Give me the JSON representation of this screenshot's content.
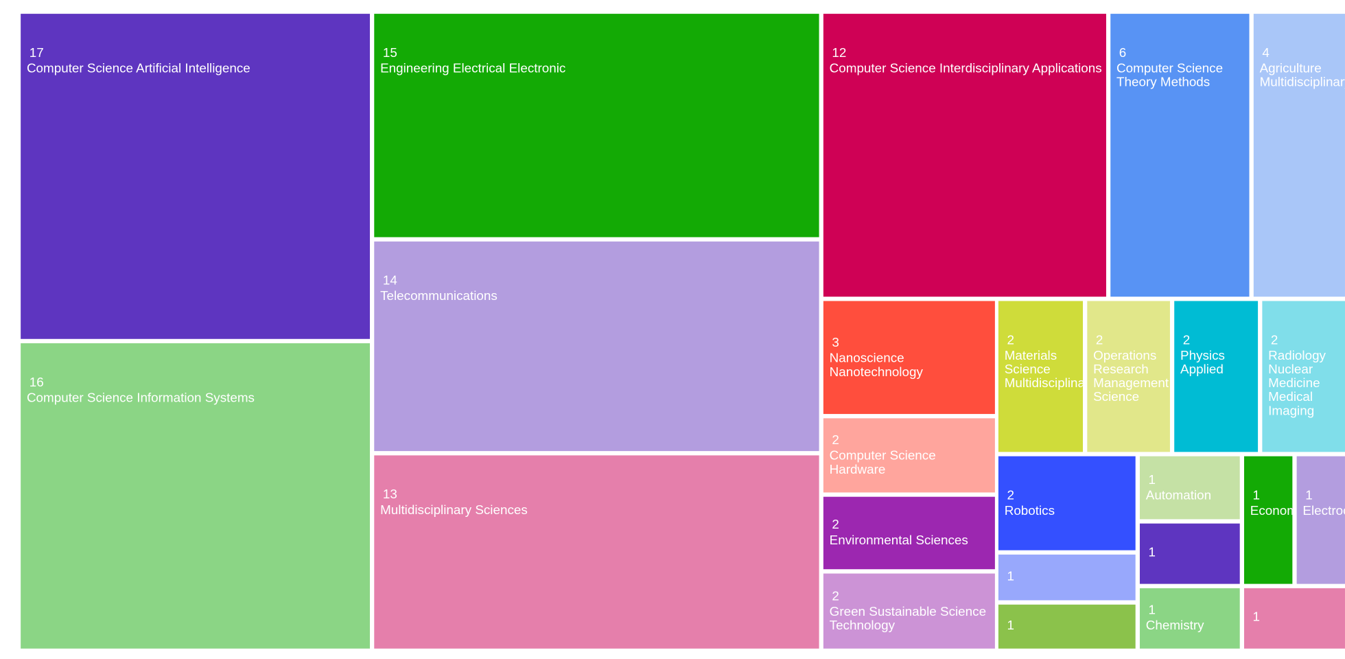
{
  "chart_data": {
    "type": "treemap",
    "title": "",
    "cells": [
      {
        "label": "Computer Science Artificial Intelligence",
        "value": 17,
        "color": "#5e35c0"
      },
      {
        "label": "Computer Science Information Systems",
        "value": 16,
        "color": "#8bd585"
      },
      {
        "label": "Engineering Electrical Electronic",
        "value": 15,
        "color": "#13aa05"
      },
      {
        "label": "Telecommunications",
        "value": 14,
        "color": "#b39ddf"
      },
      {
        "label": "Multidisciplinary Sciences",
        "value": 13,
        "color": "#e57fab"
      },
      {
        "label": "Computer Science Interdisciplinary Applications",
        "value": 12,
        "color": "#cf0155"
      },
      {
        "label": "Computer Science Theory Methods",
        "value": 6,
        "color": "#5893f4"
      },
      {
        "label": "Agriculture Multidisciplinary",
        "value": 4,
        "color": "#a9c6f8"
      },
      {
        "label": "Nanoscience Nanotechnology",
        "value": 3,
        "color": "#ff4e3d"
      },
      {
        "label": "Computer Science Hardware",
        "value": 2,
        "color": "#ffa59d"
      },
      {
        "label": "Environmental Sciences",
        "value": 2,
        "color": "#9c27b0"
      },
      {
        "label": "Green Sustainable Science Technology",
        "value": 2,
        "color": "#cc93d6"
      },
      {
        "label": "Materials Science Multidisciplinary",
        "value": 2,
        "color": "#cfdc3a"
      },
      {
        "label": "Operations Research Management Science",
        "value": 2,
        "color": "#e1e78a"
      },
      {
        "label": "Physics Applied",
        "value": 2,
        "color": "#00bcd4"
      },
      {
        "label": "Radiology Nuclear Medicine Medical Imaging",
        "value": 2,
        "color": "#80deea"
      },
      {
        "label": "Robotics",
        "value": 2,
        "color": "#3450ff"
      },
      {
        "label": "",
        "value": 1,
        "color": "#98a8fc"
      },
      {
        "label": "",
        "value": 1,
        "color": "#8bc24b"
      },
      {
        "label": "Automation",
        "value": 1,
        "color": "#c5e1a5"
      },
      {
        "label": "",
        "value": 1,
        "color": "#5e35c0"
      },
      {
        "label": "Chemistry",
        "value": 1,
        "color": "#8bd585"
      },
      {
        "label": "Economics",
        "value": 1,
        "color": "#13aa05"
      },
      {
        "label": "Electrochemistry",
        "value": 1,
        "color": "#b39ddf"
      },
      {
        "label": "",
        "value": 1,
        "color": "#e57fab"
      }
    ]
  }
}
